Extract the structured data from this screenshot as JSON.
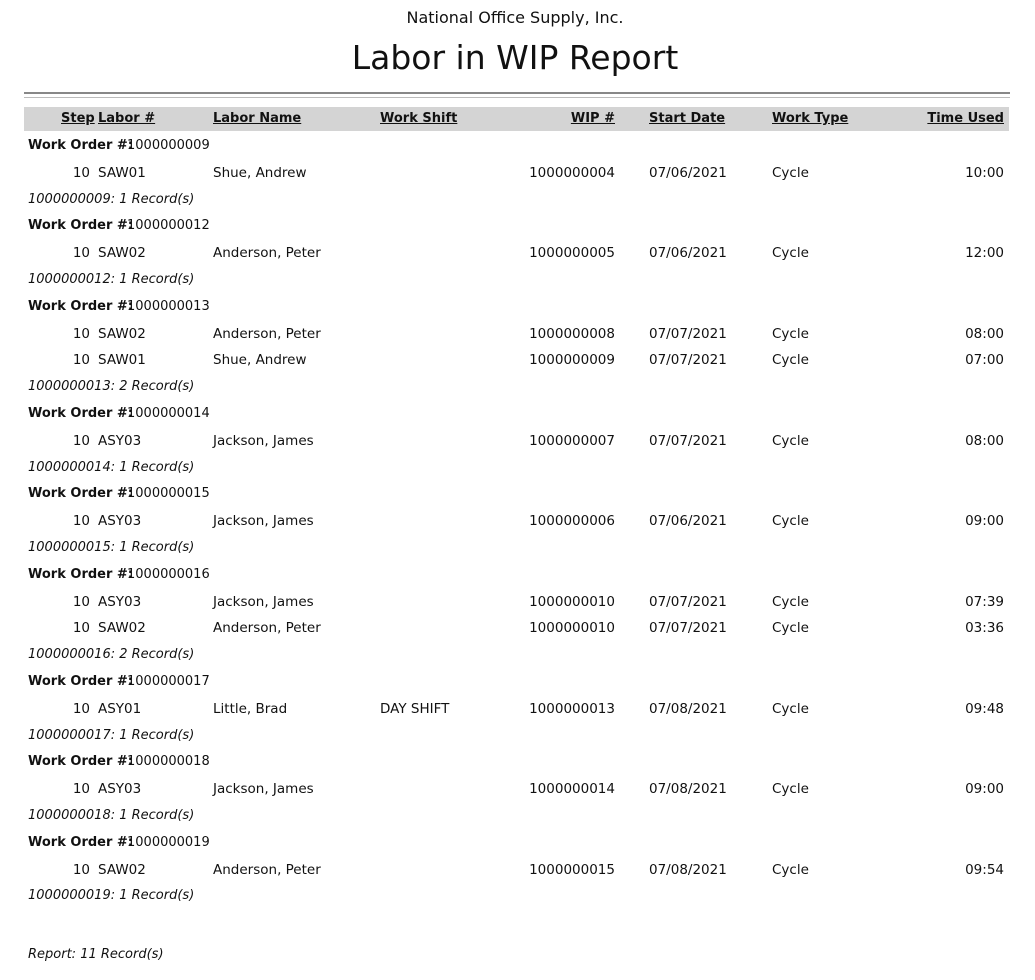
{
  "header": {
    "company": "National Office Supply, Inc.",
    "title": "Labor in WIP Report"
  },
  "columns": {
    "step": "Step",
    "labor_no": "Labor #",
    "labor_name": "Labor Name",
    "work_shift": "Work Shift",
    "wip_no": "WIP #",
    "start_date": "Start Date",
    "work_type": "Work Type",
    "time_used": "Time Used"
  },
  "group_label": "Work Order #:",
  "groups": [
    {
      "work_order": "1000000009",
      "footer": "1000000009: 1 Record(s)",
      "rows": [
        {
          "step": "10",
          "labor": "SAW01",
          "name": "Shue, Andrew",
          "shift": "",
          "wip": "1000000004",
          "date": "07/06/2021",
          "type": "Cycle",
          "time": "10:00"
        }
      ]
    },
    {
      "work_order": "1000000012",
      "footer": "1000000012: 1 Record(s)",
      "rows": [
        {
          "step": "10",
          "labor": "SAW02",
          "name": "Anderson, Peter",
          "shift": "",
          "wip": "1000000005",
          "date": "07/06/2021",
          "type": "Cycle",
          "time": "12:00"
        }
      ]
    },
    {
      "work_order": "1000000013",
      "footer": "1000000013: 2 Record(s)",
      "rows": [
        {
          "step": "10",
          "labor": "SAW02",
          "name": "Anderson, Peter",
          "shift": "",
          "wip": "1000000008",
          "date": "07/07/2021",
          "type": "Cycle",
          "time": "08:00"
        },
        {
          "step": "10",
          "labor": "SAW01",
          "name": "Shue, Andrew",
          "shift": "",
          "wip": "1000000009",
          "date": "07/07/2021",
          "type": "Cycle",
          "time": "07:00"
        }
      ]
    },
    {
      "work_order": "1000000014",
      "footer": "1000000014: 1 Record(s)",
      "rows": [
        {
          "step": "10",
          "labor": "ASY03",
          "name": "Jackson, James",
          "shift": "",
          "wip": "1000000007",
          "date": "07/07/2021",
          "type": "Cycle",
          "time": "08:00"
        }
      ]
    },
    {
      "work_order": "1000000015",
      "footer": "1000000015: 1 Record(s)",
      "rows": [
        {
          "step": "10",
          "labor": "ASY03",
          "name": "Jackson, James",
          "shift": "",
          "wip": "1000000006",
          "date": "07/06/2021",
          "type": "Cycle",
          "time": "09:00"
        }
      ]
    },
    {
      "work_order": "1000000016",
      "footer": "1000000016: 2 Record(s)",
      "rows": [
        {
          "step": "10",
          "labor": "ASY03",
          "name": "Jackson, James",
          "shift": "",
          "wip": "1000000010",
          "date": "07/07/2021",
          "type": "Cycle",
          "time": "07:39"
        },
        {
          "step": "10",
          "labor": "SAW02",
          "name": "Anderson, Peter",
          "shift": "",
          "wip": "1000000010",
          "date": "07/07/2021",
          "type": "Cycle",
          "time": "03:36"
        }
      ]
    },
    {
      "work_order": "1000000017",
      "footer": "1000000017: 1 Record(s)",
      "rows": [
        {
          "step": "10",
          "labor": "ASY01",
          "name": "Little, Brad",
          "shift": "DAY SHIFT",
          "wip": "1000000013",
          "date": "07/08/2021",
          "type": "Cycle",
          "time": "09:48"
        }
      ]
    },
    {
      "work_order": "1000000018",
      "footer": "1000000018: 1 Record(s)",
      "rows": [
        {
          "step": "10",
          "labor": "ASY03",
          "name": "Jackson, James",
          "shift": "",
          "wip": "1000000014",
          "date": "07/08/2021",
          "type": "Cycle",
          "time": "09:00"
        }
      ]
    },
    {
      "work_order": "1000000019",
      "footer": "1000000019: 1 Record(s)",
      "rows": [
        {
          "step": "10",
          "labor": "SAW02",
          "name": "Anderson, Peter",
          "shift": "",
          "wip": "1000000015",
          "date": "07/08/2021",
          "type": "Cycle",
          "time": "09:54"
        }
      ]
    }
  ],
  "report_total": "Report: 11 Record(s)"
}
